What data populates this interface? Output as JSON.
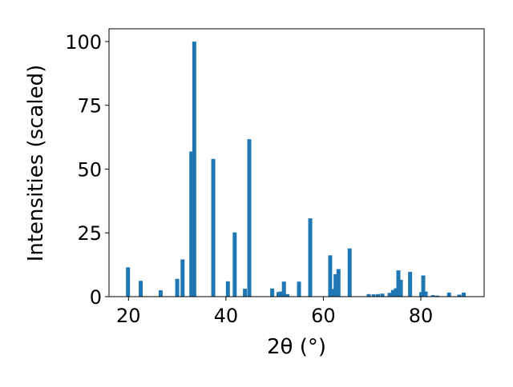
{
  "chart_data": {
    "type": "bar",
    "title": "",
    "xlabel": "2θ (°)",
    "ylabel": "Intensities (scaled)",
    "xlim": [
      16,
      93
    ],
    "ylim": [
      0,
      105
    ],
    "x_ticks": [
      "20",
      "40",
      "60",
      "80"
    ],
    "y_ticks": [
      "0",
      "25",
      "50",
      "75",
      "100"
    ],
    "grid": false,
    "legend": "none",
    "color": "#1f77b4",
    "series": [
      {
        "x": [
          19.9,
          22.5,
          26.6,
          30.0,
          31.1,
          32.9,
          33.5,
          37.4,
          40.4,
          41.8,
          43.9,
          44.8,
          49.5,
          50.8,
          51.2,
          51.9,
          52.6,
          55.0,
          57.3,
          61.4,
          61.9,
          62.5,
          63.1,
          65.4,
          69.3,
          70.3,
          71.2,
          72.1,
          73.6,
          74.3,
          74.9,
          75.4,
          75.9,
          77.8,
          80.1,
          80.5,
          81.0,
          82.5,
          83.4,
          85.8,
          87.9,
          88.8
        ],
        "values": [
          11.5,
          6.2,
          2.5,
          7.0,
          14.6,
          56.9,
          100.0,
          54.0,
          6.0,
          25.2,
          3.1,
          61.7,
          3.2,
          1.8,
          2.0,
          5.9,
          1.0,
          5.9,
          30.7,
          16.2,
          3.0,
          8.8,
          10.8,
          18.9,
          1.0,
          0.9,
          1.0,
          1.2,
          1.5,
          2.6,
          3.3,
          10.3,
          6.6,
          9.7,
          1.8,
          8.3,
          2.0,
          0.6,
          0.4,
          1.6,
          0.8,
          1.6
        ]
      }
    ]
  }
}
